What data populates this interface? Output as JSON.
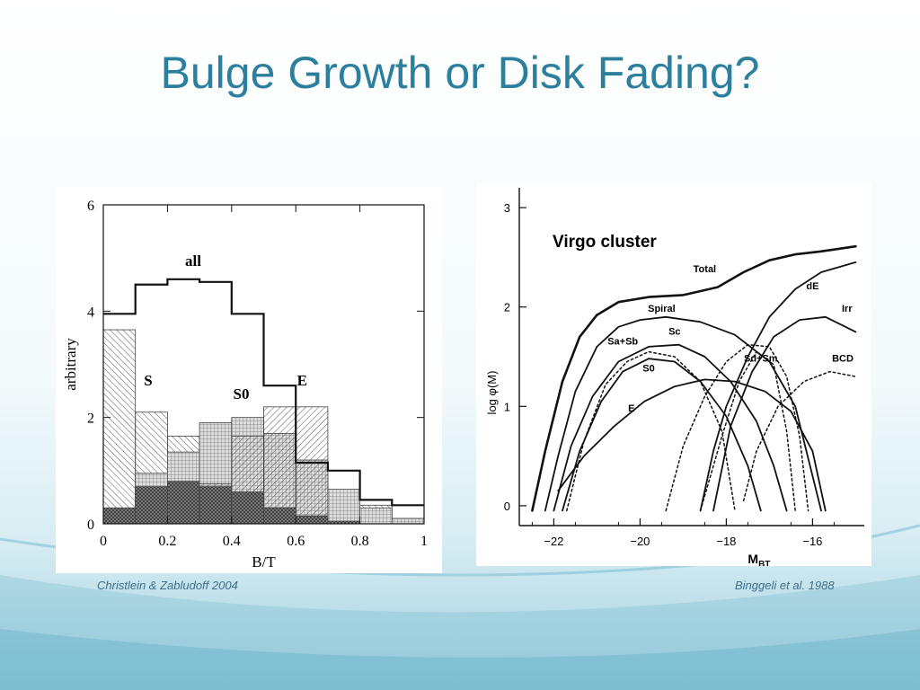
{
  "slide": {
    "title": "Bulge Growth or Disk Fading?",
    "caption_left": "Christlein & Zabludoff 2004",
    "caption_right": "Binggeli et al. 1988"
  },
  "colors": {
    "title": "#2c7f9e",
    "caption": "#3f6e8a",
    "ink": "#1a1a1a",
    "accent_wave": "#8cc6d8"
  },
  "chart_data": [
    {
      "type": "area",
      "x_field_label": "B/T",
      "ylabel": "arbitrary",
      "xlim": [
        0,
        1
      ],
      "ylim": [
        0,
        6
      ],
      "x_ticks": [
        0,
        0.2,
        0.4,
        0.6,
        0.8,
        1
      ],
      "y_ticks": [
        0,
        2,
        4,
        6
      ],
      "bin_edges": [
        0,
        0.1,
        0.2,
        0.3,
        0.4,
        0.5,
        0.6,
        0.7,
        0.8,
        0.9,
        1.0
      ],
      "series": [
        {
          "name": "all",
          "label_at": [
            0.28,
            4.85
          ],
          "values": [
            3.95,
            4.5,
            4.6,
            4.55,
            3.95,
            2.6,
            1.15,
            1.0,
            0.45,
            0.35
          ]
        },
        {
          "name": "S",
          "label_at": [
            0.14,
            2.6
          ],
          "values": [
            3.65,
            2.1,
            1.65,
            1.55,
            1.35,
            1.2,
            0.75,
            0.55,
            0.35,
            0.1
          ]
        },
        {
          "name": "S0",
          "label_at": [
            0.43,
            2.35
          ],
          "values": [
            0.25,
            0.95,
            1.35,
            1.9,
            2.0,
            1.7,
            1.2,
            0.65,
            0.3,
            0.1
          ]
        },
        {
          "name": "E",
          "label_at": [
            0.62,
            2.6
          ],
          "values": [
            0.0,
            0.25,
            0.45,
            0.75,
            1.65,
            2.2,
            2.2,
            0.0,
            0.0,
            0.0
          ]
        },
        {
          "name": "",
          "values": [
            0.3,
            0.7,
            0.8,
            0.7,
            0.6,
            0.3,
            0.15,
            0.05,
            0.0,
            0.0
          ]
        }
      ]
    },
    {
      "type": "line",
      "title": "Virgo cluster",
      "xlabel": "M_BT",
      "ylabel": "log φ(M)",
      "xlim": [
        -22.8,
        -14.8
      ],
      "ylim": [
        -0.2,
        3.2
      ],
      "x_ticks": [
        -22,
        -20,
        -18,
        -16
      ],
      "x_tick_labels": [
        "−22",
        "−20",
        "−18",
        "−16"
      ],
      "y_ticks": [
        0,
        1,
        2,
        3
      ],
      "series": [
        {
          "name": "Total",
          "style": "solid",
          "label_at": [
            -18.5,
            2.35
          ],
          "points": [
            [
              -22.5,
              -0.05
            ],
            [
              -22.2,
              0.55
            ],
            [
              -21.8,
              1.25
            ],
            [
              -21.4,
              1.7
            ],
            [
              -21.0,
              1.92
            ],
            [
              -20.5,
              2.05
            ],
            [
              -19.8,
              2.1
            ],
            [
              -19.0,
              2.12
            ],
            [
              -18.2,
              2.2
            ],
            [
              -17.6,
              2.35
            ],
            [
              -17.0,
              2.47
            ],
            [
              -16.4,
              2.53
            ],
            [
              -15.8,
              2.56
            ],
            [
              -15.0,
              2.61
            ]
          ]
        },
        {
          "name": "Spiral",
          "style": "solid",
          "label_at": [
            -19.5,
            1.95
          ],
          "points": [
            [
              -22.2,
              -0.05
            ],
            [
              -21.9,
              0.5
            ],
            [
              -21.5,
              1.15
            ],
            [
              -21.0,
              1.6
            ],
            [
              -20.5,
              1.8
            ],
            [
              -20.0,
              1.87
            ],
            [
              -19.4,
              1.9
            ],
            [
              -18.6,
              1.85
            ],
            [
              -17.8,
              1.72
            ],
            [
              -17.0,
              1.45
            ],
            [
              -16.4,
              1.0
            ],
            [
              -16.0,
              0.3
            ],
            [
              -15.8,
              -0.05
            ]
          ]
        },
        {
          "name": "Sa+Sb",
          "style": "dotted",
          "label_at": [
            -20.4,
            1.62
          ],
          "points": [
            [
              -21.7,
              -0.05
            ],
            [
              -21.3,
              0.65
            ],
            [
              -20.8,
              1.22
            ],
            [
              -20.3,
              1.45
            ],
            [
              -19.8,
              1.55
            ],
            [
              -19.2,
              1.5
            ],
            [
              -18.6,
              1.25
            ],
            [
              -18.1,
              0.75
            ],
            [
              -17.8,
              -0.05
            ]
          ]
        },
        {
          "name": "Sc",
          "style": "solid",
          "label_at": [
            -19.2,
            1.72
          ],
          "points": [
            [
              -22.0,
              -0.05
            ],
            [
              -21.6,
              0.6
            ],
            [
              -21.1,
              1.1
            ],
            [
              -20.5,
              1.45
            ],
            [
              -19.8,
              1.6
            ],
            [
              -19.1,
              1.62
            ],
            [
              -18.5,
              1.5
            ],
            [
              -17.9,
              1.25
            ],
            [
              -17.3,
              0.85
            ],
            [
              -16.9,
              0.4
            ],
            [
              -16.6,
              -0.05
            ]
          ]
        },
        {
          "name": "S0",
          "style": "solid",
          "label_at": [
            -19.8,
            1.35
          ],
          "points": [
            [
              -21.8,
              -0.05
            ],
            [
              -21.4,
              0.55
            ],
            [
              -20.9,
              1.05
            ],
            [
              -20.4,
              1.35
            ],
            [
              -19.8,
              1.48
            ],
            [
              -19.2,
              1.45
            ],
            [
              -18.6,
              1.25
            ],
            [
              -18.0,
              0.9
            ],
            [
              -17.5,
              0.4
            ],
            [
              -17.2,
              -0.05
            ]
          ]
        },
        {
          "name": "E",
          "style": "solid",
          "label_at": [
            -20.2,
            0.95
          ],
          "points": [
            [
              -21.9,
              0.15
            ],
            [
              -21.3,
              0.5
            ],
            [
              -20.6,
              0.8
            ],
            [
              -19.9,
              1.05
            ],
            [
              -19.2,
              1.2
            ],
            [
              -18.5,
              1.27
            ],
            [
              -17.8,
              1.25
            ],
            [
              -17.1,
              1.15
            ],
            [
              -16.5,
              0.95
            ],
            [
              -16.0,
              0.55
            ],
            [
              -15.7,
              -0.05
            ]
          ]
        },
        {
          "name": "Sd+Sm",
          "style": "dotted",
          "label_at": [
            -17.2,
            1.45
          ],
          "points": [
            [
              -19.4,
              -0.05
            ],
            [
              -19.0,
              0.6
            ],
            [
              -18.5,
              1.1
            ],
            [
              -18.0,
              1.45
            ],
            [
              -17.5,
              1.62
            ],
            [
              -17.0,
              1.6
            ],
            [
              -16.6,
              1.3
            ],
            [
              -16.3,
              0.7
            ],
            [
              -16.1,
              -0.05
            ]
          ]
        },
        {
          "name": "dE",
          "style": "solid",
          "label_at": [
            -16.0,
            2.18
          ],
          "points": [
            [
              -18.6,
              -0.05
            ],
            [
              -18.3,
              0.55
            ],
            [
              -18.0,
              1.0
            ],
            [
              -17.5,
              1.5
            ],
            [
              -17.0,
              1.9
            ],
            [
              -16.4,
              2.18
            ],
            [
              -15.8,
              2.35
            ],
            [
              -15.0,
              2.45
            ]
          ]
        },
        {
          "name": "Irr",
          "style": "solid",
          "label_at": [
            -15.2,
            1.95
          ],
          "points": [
            [
              -18.3,
              -0.05
            ],
            [
              -17.9,
              0.8
            ],
            [
              -17.4,
              1.35
            ],
            [
              -16.9,
              1.7
            ],
            [
              -16.3,
              1.87
            ],
            [
              -15.7,
              1.9
            ],
            [
              -15.0,
              1.75
            ]
          ]
        },
        {
          "name": "BCD",
          "style": "dotted",
          "label_at": [
            -15.3,
            1.45
          ],
          "points": [
            [
              -17.6,
              0.05
            ],
            [
              -17.3,
              0.55
            ],
            [
              -16.8,
              1.0
            ],
            [
              -16.2,
              1.25
            ],
            [
              -15.6,
              1.35
            ],
            [
              -15.0,
              1.3
            ]
          ]
        },
        {
          "name": "",
          "style": "dotted",
          "points": [
            [
              -18.6,
              -0.05
            ],
            [
              -18.1,
              0.7
            ],
            [
              -17.7,
              1.25
            ],
            [
              -17.3,
              1.55
            ],
            [
              -16.9,
              1.42
            ],
            [
              -16.6,
              0.75
            ],
            [
              -16.4,
              -0.05
            ]
          ]
        }
      ]
    }
  ]
}
